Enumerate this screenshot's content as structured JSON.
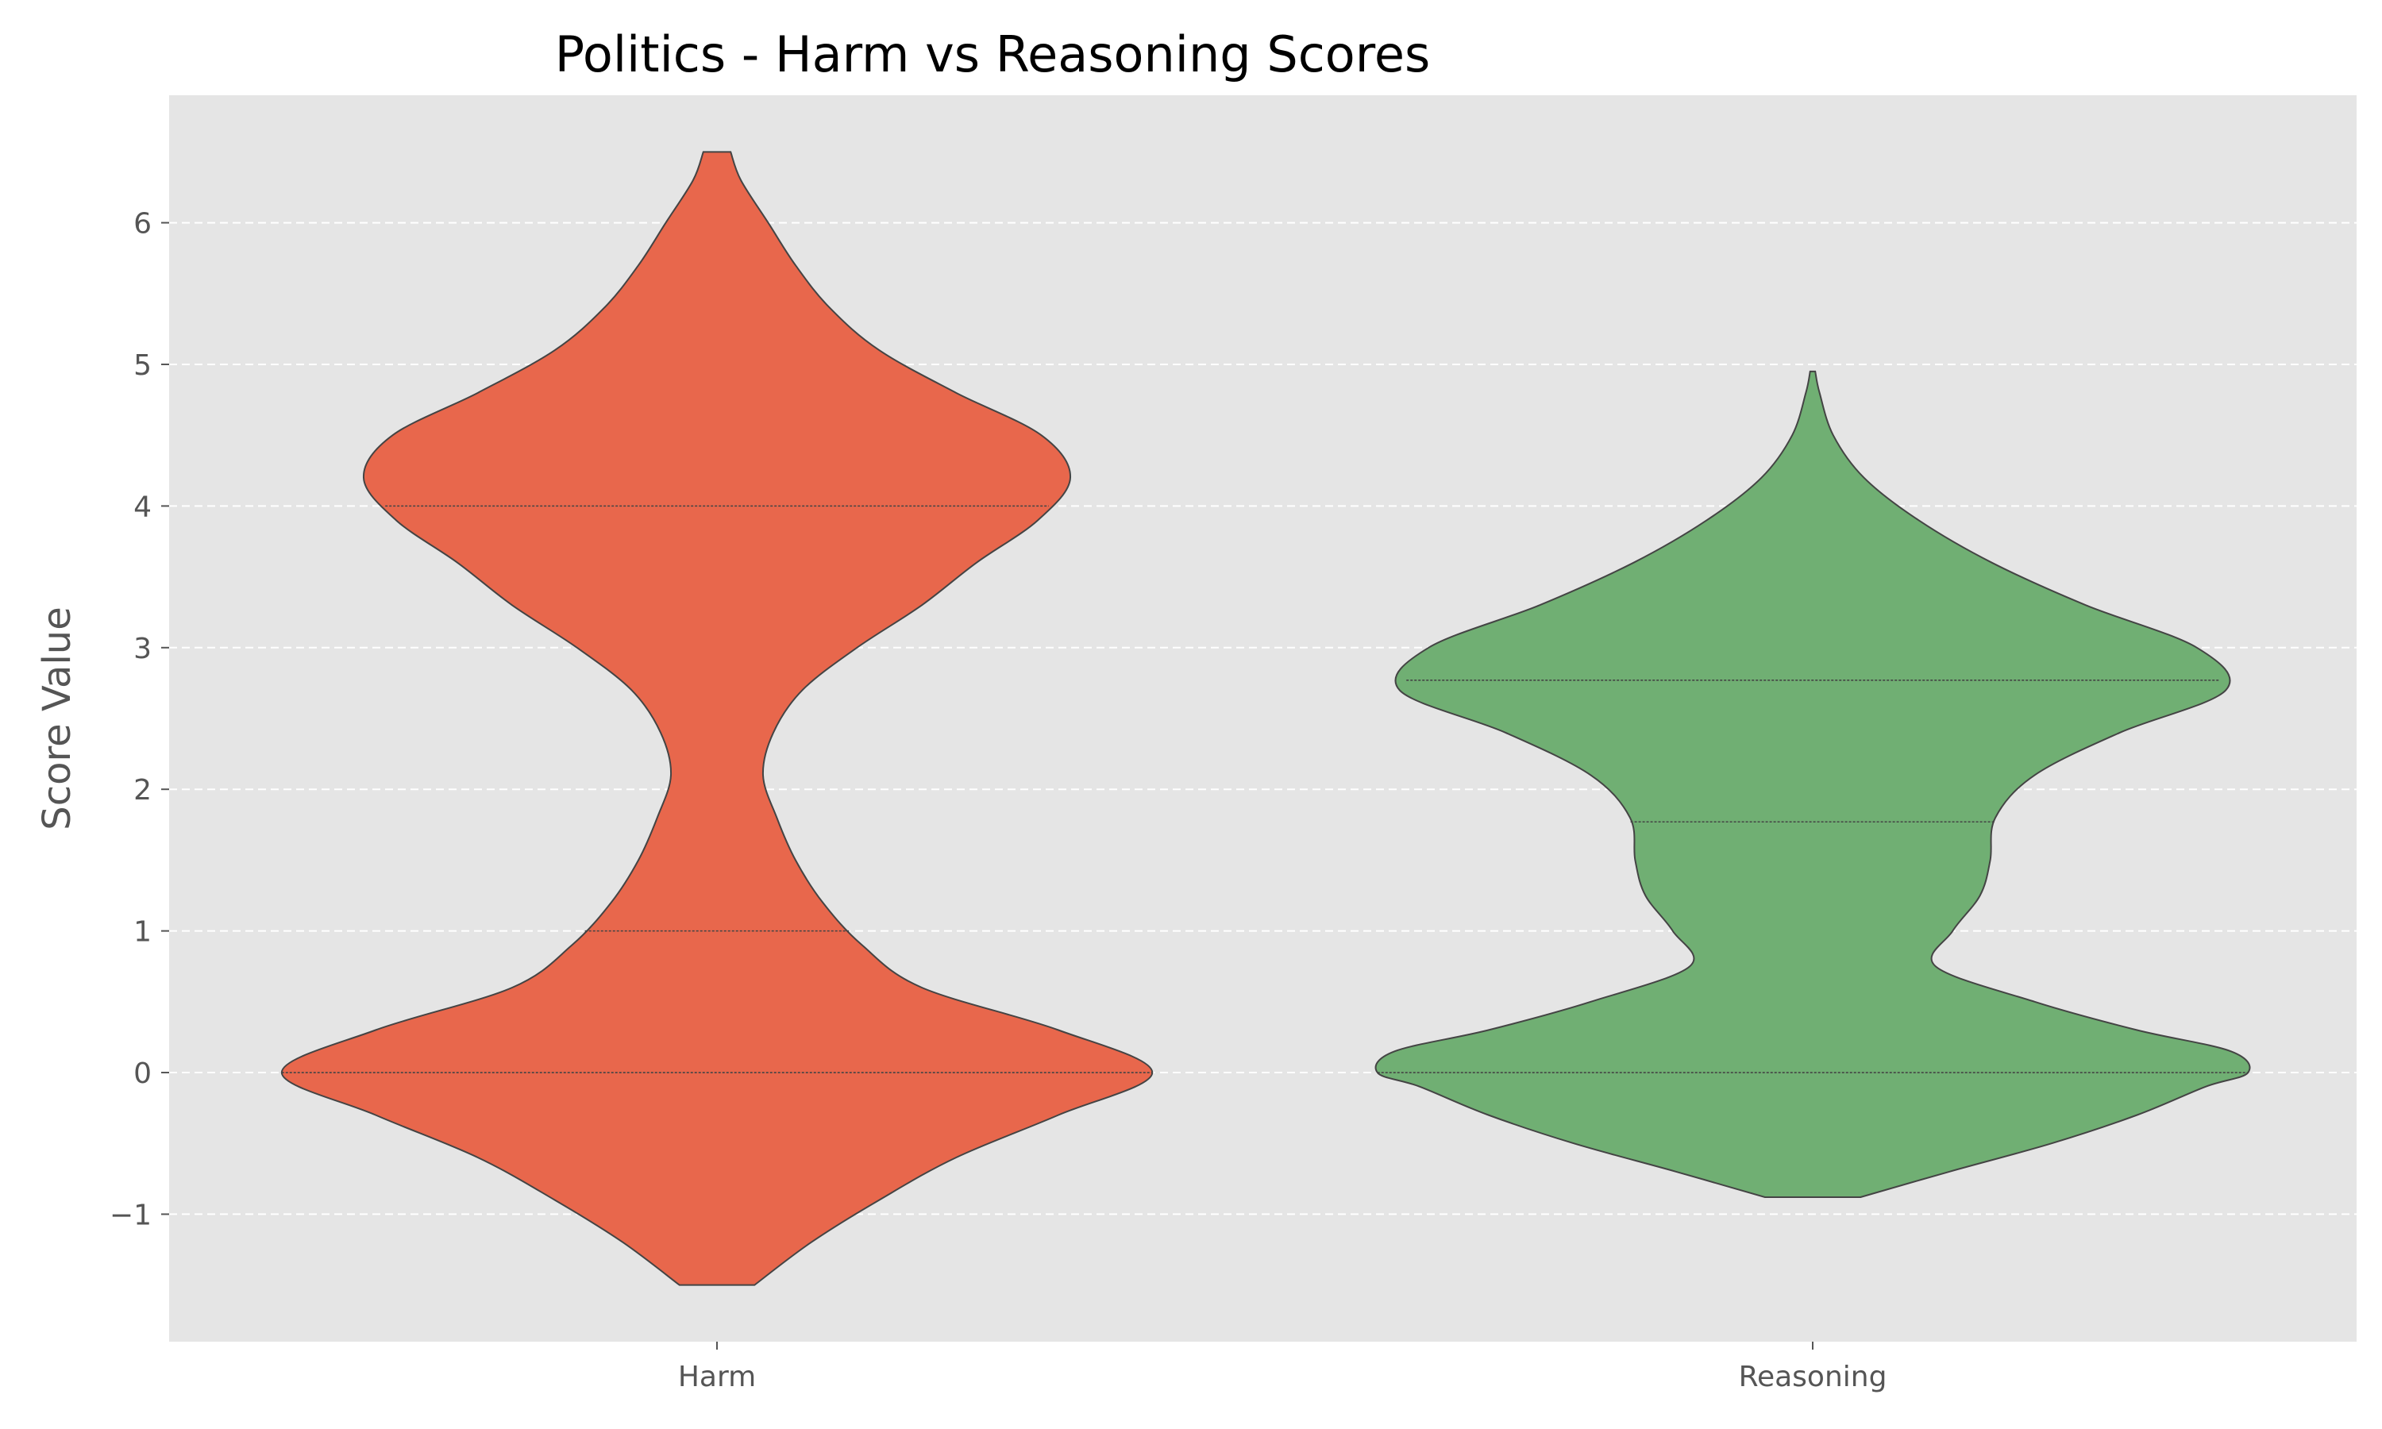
{
  "chart_data": {
    "type": "violin",
    "title": "Politics - Harm vs Reasoning Scores",
    "xlabel": "",
    "ylabel": "Score Value",
    "ylim": [
      -1.9,
      6.9
    ],
    "yticks": [
      -1,
      0,
      1,
      2,
      3,
      4,
      5,
      6
    ],
    "ytick_labels": [
      "−1",
      "0",
      "1",
      "2",
      "3",
      "4",
      "5",
      "6"
    ],
    "grid": "y-dashed",
    "background": "#e5e5e5",
    "categories": [
      "Harm",
      "Reasoning"
    ],
    "series": [
      {
        "category": "Harm",
        "color": "#e8674c",
        "range": [
          -1.5,
          6.5
        ],
        "quartiles": [
          0,
          1,
          4
        ],
        "density": [
          [
            -1.5,
            0.22
          ],
          [
            -1.2,
            0.55
          ],
          [
            -0.9,
            0.95
          ],
          [
            -0.6,
            1.4
          ],
          [
            -0.3,
            2.0
          ],
          [
            0.0,
            2.55
          ],
          [
            0.3,
            2.0
          ],
          [
            0.6,
            1.2
          ],
          [
            0.9,
            0.85
          ],
          [
            1.2,
            0.62
          ],
          [
            1.5,
            0.46
          ],
          [
            1.8,
            0.35
          ],
          [
            2.1,
            0.27
          ],
          [
            2.4,
            0.33
          ],
          [
            2.7,
            0.5
          ],
          [
            3.0,
            0.82
          ],
          [
            3.3,
            1.2
          ],
          [
            3.6,
            1.52
          ],
          [
            3.9,
            1.88
          ],
          [
            4.2,
            2.07
          ],
          [
            4.5,
            1.9
          ],
          [
            4.8,
            1.4
          ],
          [
            5.1,
            0.95
          ],
          [
            5.4,
            0.66
          ],
          [
            5.7,
            0.46
          ],
          [
            6.0,
            0.3
          ],
          [
            6.3,
            0.14
          ],
          [
            6.5,
            0.08
          ]
        ]
      },
      {
        "category": "Reasoning",
        "color": "#70af73",
        "range": [
          -0.88,
          4.95
        ],
        "quartiles": [
          0,
          1.77,
          2.77
        ],
        "density": [
          [
            -0.88,
            0.28
          ],
          [
            -0.7,
            0.8
          ],
          [
            -0.5,
            1.4
          ],
          [
            -0.3,
            1.9
          ],
          [
            -0.1,
            2.3
          ],
          [
            0.0,
            2.55
          ],
          [
            0.15,
            2.45
          ],
          [
            0.3,
            1.9
          ],
          [
            0.5,
            1.3
          ],
          [
            0.75,
            0.72
          ],
          [
            1.0,
            0.82
          ],
          [
            1.25,
            0.98
          ],
          [
            1.5,
            1.04
          ],
          [
            1.8,
            1.07
          ],
          [
            2.1,
            1.3
          ],
          [
            2.4,
            1.8
          ],
          [
            2.7,
            2.42
          ],
          [
            3.0,
            2.25
          ],
          [
            3.3,
            1.6
          ],
          [
            3.6,
            1.05
          ],
          [
            3.9,
            0.62
          ],
          [
            4.2,
            0.3
          ],
          [
            4.5,
            0.12
          ],
          [
            4.8,
            0.04
          ],
          [
            4.95,
            0.015
          ]
        ]
      }
    ]
  }
}
